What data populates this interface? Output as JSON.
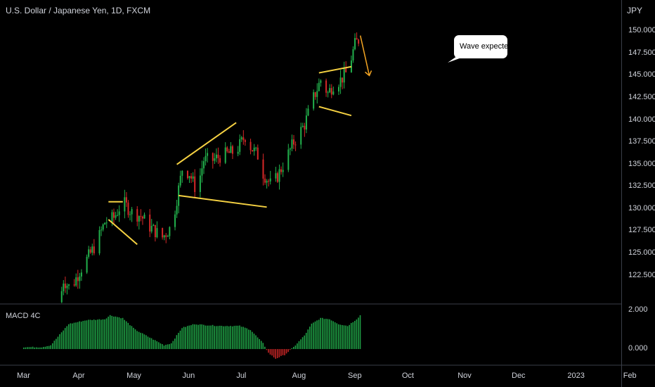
{
  "chart": {
    "title": "U.S. Dollar / Japanese Yen, 1D, FXCM",
    "currency": "JPY",
    "callout": "Wave expected",
    "macd_label": "MACD 4C",
    "colors": {
      "background": "#000000",
      "up": "#22b14c",
      "down": "#d62828",
      "annotation": "#f5d142",
      "arrow": "#f5a623",
      "grid": "#2a2e39",
      "callout_bg": "#ffffff"
    }
  },
  "chart_data": [
    {
      "type": "candlestick",
      "y_ticks": [
        "122.500",
        "125.000",
        "127.500",
        "130.000",
        "132.500",
        "135.000",
        "137.500",
        "140.000",
        "142.500",
        "145.000",
        "147.500",
        "150.000"
      ],
      "ylim": [
        119.3,
        153.5
      ],
      "x_ticks": [
        "Mar",
        "Apr",
        "May",
        "Jun",
        "Jul",
        "Aug",
        "Sep",
        "Oct",
        "Nov",
        "Dec",
        "2023",
        "Feb"
      ],
      "x_tick_days": [
        0,
        31,
        61,
        92,
        122,
        153,
        184,
        214,
        245,
        275,
        306,
        337
      ],
      "path_points": [
        [
          20,
          119.5
        ],
        [
          22,
          122.0
        ],
        [
          26,
          121.0
        ],
        [
          31,
          123.0
        ],
        [
          40,
          126.0
        ],
        [
          45,
          128.5
        ],
        [
          50,
          129.0
        ],
        [
          55,
          130.8
        ],
        [
          60,
          129.6
        ],
        [
          65,
          129.2
        ],
        [
          70,
          128.0
        ],
        [
          77,
          126.8
        ],
        [
          82,
          128.0
        ],
        [
          84,
          130.0
        ],
        [
          88,
          134.5
        ],
        [
          92,
          134.0
        ],
        [
          96,
          132.0
        ],
        [
          100,
          135.5
        ],
        [
          105,
          135.5
        ],
        [
          110,
          136.0
        ],
        [
          118,
          136.5
        ],
        [
          123,
          138.2
        ],
        [
          126,
          137.0
        ],
        [
          130,
          136.0
        ],
        [
          133,
          134.0
        ],
        [
          138,
          132.5
        ],
        [
          143,
          134.5
        ],
        [
          150,
          137.5
        ],
        [
          156,
          139.5
        ],
        [
          161,
          142.5
        ],
        [
          165,
          144.5
        ],
        [
          169,
          143.0
        ],
        [
          172,
          144.0
        ],
        [
          176,
          144.5
        ],
        [
          180,
          145.5
        ],
        [
          184,
          148.5
        ],
        [
          186,
          149.0
        ]
      ],
      "macd": [
        [
          0,
          0.1
        ],
        [
          10,
          0.1
        ],
        [
          15,
          0.2
        ],
        [
          25,
          1.3
        ],
        [
          35,
          1.5
        ],
        [
          45,
          1.55
        ],
        [
          48,
          1.75
        ],
        [
          55,
          1.6
        ],
        [
          62,
          1.0
        ],
        [
          70,
          0.6
        ],
        [
          78,
          0.2
        ],
        [
          82,
          0.3
        ],
        [
          88,
          1.1
        ],
        [
          95,
          1.3
        ],
        [
          100,
          1.25
        ],
        [
          110,
          1.2
        ],
        [
          120,
          1.2
        ],
        [
          126,
          1.0
        ],
        [
          133,
          0.3
        ],
        [
          136,
          -0.2
        ],
        [
          140,
          -0.5
        ],
        [
          145,
          -0.3
        ],
        [
          150,
          0.1
        ],
        [
          156,
          0.7
        ],
        [
          160,
          1.3
        ],
        [
          165,
          1.6
        ],
        [
          170,
          1.55
        ],
        [
          175,
          1.3
        ],
        [
          180,
          1.2
        ],
        [
          185,
          1.55
        ],
        [
          187,
          1.75
        ]
      ],
      "macd_ticks": [
        "2.000",
        "0.000"
      ],
      "macd_ylim": [
        -0.8,
        2.3
      ],
      "trendlines": [
        {
          "points": [
            [
              47,
              130.8
            ],
            [
              55,
              130.8
            ]
          ]
        },
        {
          "points": [
            [
              47,
              128.8
            ],
            [
              63,
              126.0
            ]
          ]
        },
        {
          "points": [
            [
              85,
              135.0
            ],
            [
              118,
              139.7
            ]
          ]
        },
        {
          "points": [
            [
              86,
              131.5
            ],
            [
              135,
              130.2
            ]
          ]
        },
        {
          "points": [
            [
              164,
              145.3
            ],
            [
              182,
              146.0
            ]
          ]
        },
        {
          "points": [
            [
              164,
              141.5
            ],
            [
              182,
              140.5
            ]
          ]
        }
      ],
      "arrow": {
        "points": [
          [
            187,
            149.5
          ],
          [
            192,
            145.0
          ]
        ]
      }
    }
  ]
}
